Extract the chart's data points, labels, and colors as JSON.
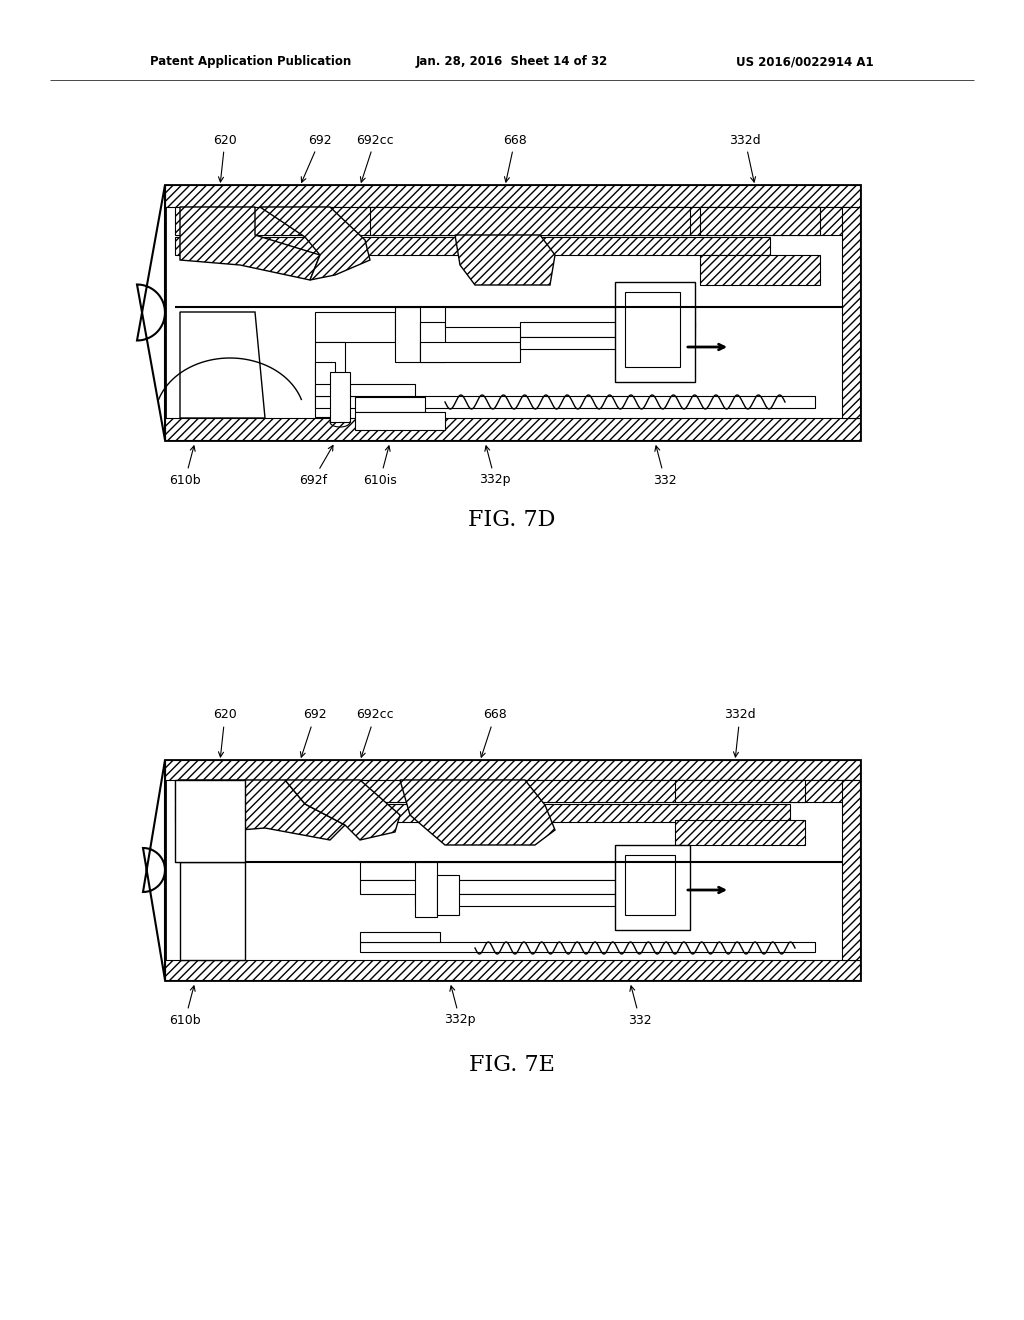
{
  "bg_color": "#ffffff",
  "line_color": "#000000",
  "header_left": "Patent Application Publication",
  "header_mid": "Jan. 28, 2016  Sheet 14 of 32",
  "header_right": "US 2016/0022914 A1",
  "fig7d_caption": "FIG. 7D",
  "fig7e_caption": "FIG. 7E",
  "fig7d_top_labels": [
    "620",
    "692",
    "692cc",
    "668",
    "332d"
  ],
  "fig7d_bot_labels": [
    "610b",
    "692f",
    "610is",
    "332p",
    "332"
  ],
  "fig7e_top_labels": [
    "620",
    "692",
    "692cc",
    "668",
    "332d"
  ],
  "fig7e_bot_labels": [
    "610b",
    "332p",
    "332"
  ]
}
